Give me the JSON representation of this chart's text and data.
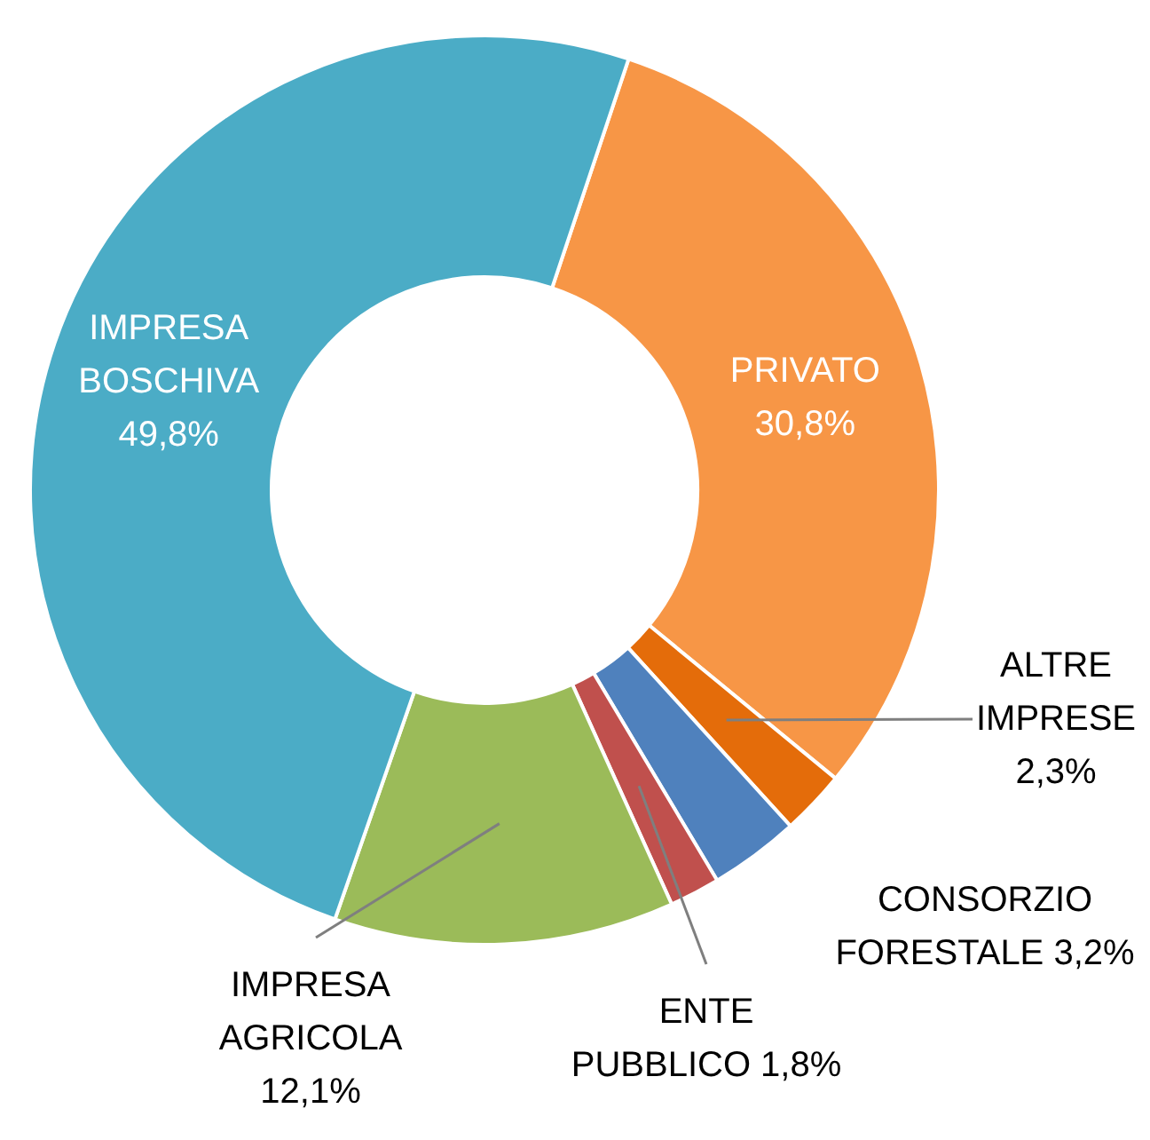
{
  "chart_data": {
    "type": "donut",
    "categories": [
      "PRIVATO",
      "ALTRE IMPRESE",
      "CONSORZIO FORESTALE",
      "ENTE PUBBLICO",
      "IMPRESA AGRICOLA",
      "IMPRESA BOSCHIVA"
    ],
    "values": [
      30.8,
      2.3,
      3.2,
      1.8,
      12.1,
      49.8
    ],
    "colors": [
      "#f79646",
      "#e46c0a",
      "#4f81bd",
      "#c0504d",
      "#9bbb59",
      "#4bacc6"
    ],
    "value_labels": [
      "30,8%",
      "2,3%",
      "3,2%",
      "1,8%",
      "12,1%",
      "49,8%"
    ]
  }
}
